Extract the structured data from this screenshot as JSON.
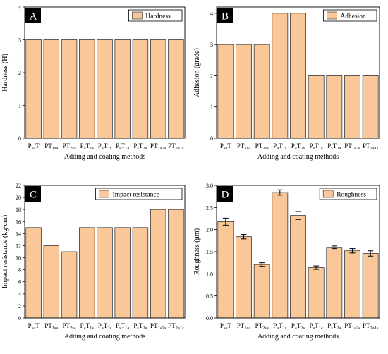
{
  "chart_data": [
    {
      "type": "bar",
      "panel_label": "A",
      "legend": "Hardness",
      "xlabel": "Adding and coating methods",
      "ylabel": "Hardness (H)",
      "categories": [
        "PsaT",
        "PT1sa",
        "PT2sa",
        "PaT1s",
        "PaT2s",
        "PsT1a",
        "PsT2a",
        "PT1a2s",
        "PT2a1s"
      ],
      "category_labels": [
        {
          "main": "P",
          "sub": "sa",
          "tail": "T"
        },
        {
          "main": "PT",
          "sub": "1sa",
          "tail": ""
        },
        {
          "main": "PT",
          "sub": "2sa",
          "tail": ""
        },
        {
          "main": "P",
          "sub": "a",
          "tail": "T",
          "sub2": "1s"
        },
        {
          "main": "P",
          "sub": "a",
          "tail": "T",
          "sub2": "2s"
        },
        {
          "main": "P",
          "sub": "s",
          "tail": "T",
          "sub2": "1a"
        },
        {
          "main": "P",
          "sub": "s",
          "tail": "T",
          "sub2": "2a"
        },
        {
          "main": "PT",
          "sub": "1a2s",
          "tail": ""
        },
        {
          "main": "PT",
          "sub": "2a1s",
          "tail": ""
        }
      ],
      "values": [
        3,
        3,
        3,
        3,
        3,
        3,
        3,
        3,
        3
      ],
      "ylim": [
        0,
        4
      ],
      "yticks": [
        0,
        1,
        2,
        3,
        4
      ],
      "ytick_labels": [
        "0",
        "1",
        "2",
        "3",
        "4"
      ],
      "error_bars": false,
      "legend_position": "top-right",
      "bar_color": "#fac898",
      "grid": false
    },
    {
      "type": "bar",
      "panel_label": "B",
      "legend": "Adhesion",
      "xlabel": "Adding and coating methods",
      "ylabel": "Adhesion (grade)",
      "categories": [
        "PsaT",
        "PT1sa",
        "PT2sa",
        "PaT1s",
        "PaT2s",
        "PsT1a",
        "PsT2a",
        "PT1a2s",
        "PT2a1s"
      ],
      "category_labels": [
        {
          "main": "P",
          "sub": "sa",
          "tail": "T"
        },
        {
          "main": "PT",
          "sub": "1sa",
          "tail": ""
        },
        {
          "main": "PT",
          "sub": "2sa",
          "tail": ""
        },
        {
          "main": "P",
          "sub": "a",
          "tail": "T",
          "sub2": "1s"
        },
        {
          "main": "P",
          "sub": "a",
          "tail": "T",
          "sub2": "2s"
        },
        {
          "main": "P",
          "sub": "s",
          "tail": "T",
          "sub2": "1a"
        },
        {
          "main": "P",
          "sub": "s",
          "tail": "T",
          "sub2": "2a"
        },
        {
          "main": "PT",
          "sub": "1a2s",
          "tail": ""
        },
        {
          "main": "PT",
          "sub": "2a1s",
          "tail": ""
        }
      ],
      "values": [
        3,
        3,
        3,
        4,
        4,
        2,
        2,
        2,
        2
      ],
      "ylim": [
        0,
        4.2
      ],
      "yticks": [
        0,
        1,
        2,
        3,
        4
      ],
      "ytick_labels": [
        "0",
        "1",
        "2",
        "3",
        "4"
      ],
      "error_bars": false,
      "legend_position": "top-right",
      "bar_color": "#fac898",
      "grid": false
    },
    {
      "type": "bar",
      "panel_label": "C",
      "legend": "Impact resistance",
      "xlabel": "Adding and coating methods",
      "ylabel": "Impact resistance (kg·cm)",
      "categories": [
        "PsaT",
        "PT1sa",
        "PT2sa",
        "PaT1s",
        "PaT2s",
        "PsT1a",
        "PsT2a",
        "PT1a2s",
        "PT2a1s"
      ],
      "category_labels": [
        {
          "main": "P",
          "sub": "sa",
          "tail": "T"
        },
        {
          "main": "PT",
          "sub": "1sa",
          "tail": ""
        },
        {
          "main": "PT",
          "sub": "2sa",
          "tail": ""
        },
        {
          "main": "P",
          "sub": "a",
          "tail": "T",
          "sub2": "1s"
        },
        {
          "main": "P",
          "sub": "a",
          "tail": "T",
          "sub2": "2s"
        },
        {
          "main": "P",
          "sub": "s",
          "tail": "T",
          "sub2": "1a"
        },
        {
          "main": "P",
          "sub": "s",
          "tail": "T",
          "sub2": "2a"
        },
        {
          "main": "PT",
          "sub": "1a2s",
          "tail": ""
        },
        {
          "main": "PT",
          "sub": "2a1s",
          "tail": ""
        }
      ],
      "values": [
        15,
        12,
        11,
        15,
        15,
        15,
        15,
        18,
        18
      ],
      "ylim": [
        0,
        22
      ],
      "yticks": [
        0,
        2,
        4,
        6,
        8,
        10,
        12,
        14,
        16,
        18,
        20,
        22
      ],
      "ytick_labels": [
        "0",
        "2",
        "4",
        "6",
        "8",
        "10",
        "12",
        "14",
        "16",
        "18",
        "20",
        "22"
      ],
      "error_bars": false,
      "legend_position": "top-right",
      "bar_color": "#fac898",
      "grid": false
    },
    {
      "type": "bar",
      "panel_label": "D",
      "legend": "Roughness",
      "xlabel": "Adding and coating methods",
      "ylabel": "Roughness (μm)",
      "categories": [
        "PsaT",
        "PT1sa",
        "PT2sa",
        "PaT1s",
        "PaT2s",
        "PsT1a",
        "PsT2a",
        "PT1a2s",
        "PT2a1s"
      ],
      "category_labels": [
        {
          "main": "P",
          "sub": "sa",
          "tail": "T"
        },
        {
          "main": "PT",
          "sub": "1sa",
          "tail": ""
        },
        {
          "main": "PT",
          "sub": "2sa",
          "tail": ""
        },
        {
          "main": "P",
          "sub": "a",
          "tail": "T",
          "sub2": "1s"
        },
        {
          "main": "P",
          "sub": "a",
          "tail": "T",
          "sub2": "2s"
        },
        {
          "main": "P",
          "sub": "s",
          "tail": "T",
          "sub2": "1a"
        },
        {
          "main": "P",
          "sub": "s",
          "tail": "T",
          "sub2": "2a"
        },
        {
          "main": "PT",
          "sub": "1a2s",
          "tail": ""
        },
        {
          "main": "PT",
          "sub": "2a1s",
          "tail": ""
        }
      ],
      "values": [
        2.18,
        1.84,
        1.21,
        2.84,
        2.32,
        1.14,
        1.6,
        1.52,
        1.46
      ],
      "errors": [
        0.08,
        0.05,
        0.04,
        0.06,
        0.09,
        0.04,
        0.03,
        0.05,
        0.06
      ],
      "ylim": [
        0,
        3.0
      ],
      "yticks": [
        0,
        0.5,
        1.0,
        1.5,
        2.0,
        2.5,
        3.0
      ],
      "ytick_labels": [
        "0.0",
        "0.5",
        "1.0",
        "1.5",
        "2.0",
        "2.5",
        "3.0"
      ],
      "error_bars": true,
      "legend_position": "top-right",
      "bar_color": "#fac898",
      "grid": false
    }
  ]
}
